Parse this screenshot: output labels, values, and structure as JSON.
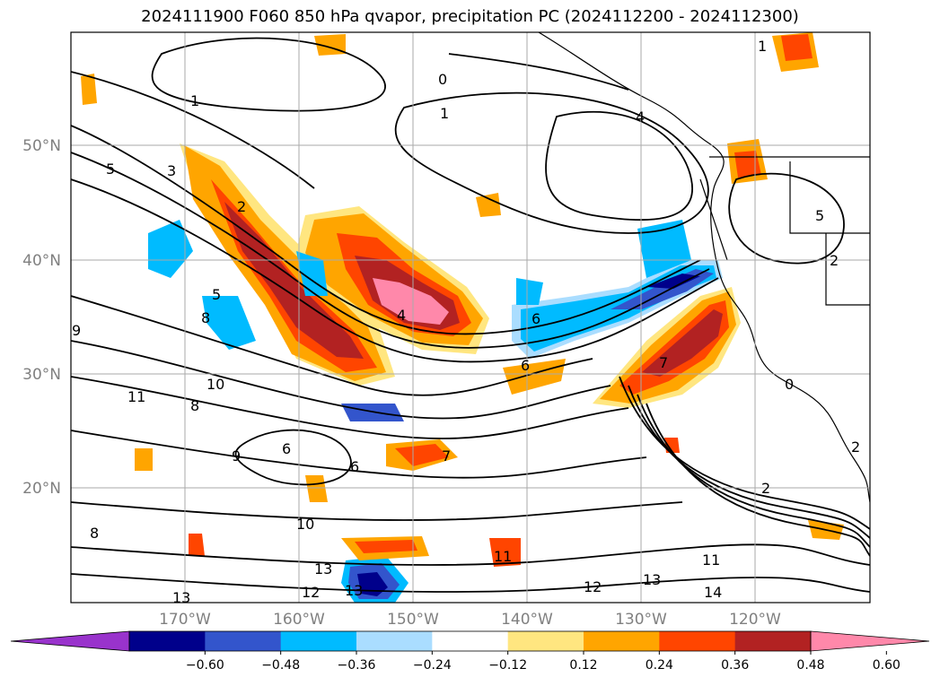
{
  "title": "2024111900 F060 850 hPa qvapor, precipitation PC (2024112200 - 2024112300)",
  "lat_ticks": [
    "50°N",
    "40°N",
    "30°N",
    "20°N"
  ],
  "lon_ticks": [
    "170°W",
    "160°W",
    "150°W",
    "140°W",
    "130°W",
    "120°W"
  ],
  "colorbar": {
    "ticks": [
      "−0.60",
      "−0.48",
      "−0.36",
      "−0.24",
      "−0.12",
      "0.12",
      "0.24",
      "0.36",
      "0.48",
      "0.60"
    ],
    "colors": [
      "#9933cc",
      "#00008b",
      "#3355cc",
      "#00bbff",
      "#aaddff",
      "#ffffff",
      "#ffe680",
      "#ffa500",
      "#ff4500",
      "#b22222",
      "#ff88aa"
    ]
  },
  "contour_labels": [
    "1",
    "0",
    "1",
    "4",
    "5",
    "3",
    "2",
    "5",
    "8",
    "4",
    "6",
    "11",
    "10",
    "8",
    "6",
    "6",
    "9",
    "10",
    "12",
    "13",
    "13",
    "11",
    "12",
    "13",
    "14",
    "11",
    "2",
    "7",
    "7",
    "6",
    "0",
    "2",
    "5",
    "9",
    "1",
    "2",
    "13",
    "8"
  ]
}
